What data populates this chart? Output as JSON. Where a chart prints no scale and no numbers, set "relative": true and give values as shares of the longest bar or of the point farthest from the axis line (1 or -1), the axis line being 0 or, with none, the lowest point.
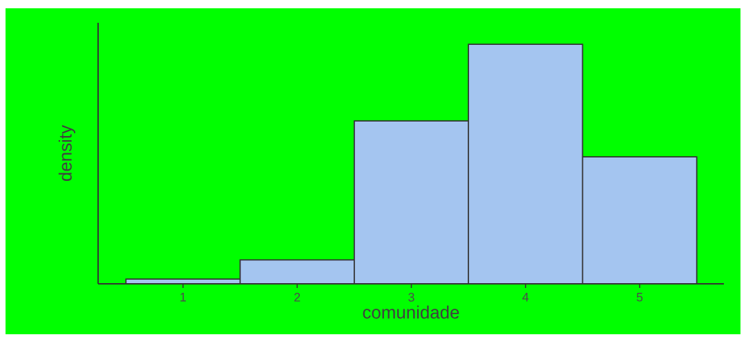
{
  "chart_data": {
    "type": "bar",
    "xlabel": "comunidade",
    "ylabel": "density",
    "relative": true,
    "categories": [
      "1",
      "2",
      "3",
      "4",
      "5"
    ],
    "values": [
      0.02,
      0.1,
      0.68,
      1,
      0.53
    ],
    "color": "#a4c5f0",
    "grid": false
  }
}
